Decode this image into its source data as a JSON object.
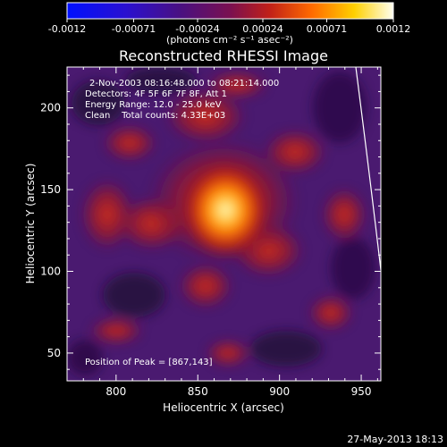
{
  "colorbar": {
    "ticks": [
      "-0.0012",
      "-0.00071",
      "-0.00024",
      "0.00024",
      "0.00071",
      "0.0012"
    ],
    "units_label": "(photons cm⁻² s⁻¹ asec⁻²)",
    "range": [
      -0.0012,
      0.0012
    ]
  },
  "chart_data": {
    "type": "heatmap",
    "title": "Reconstructed RHESSI Image",
    "xlabel": "Heliocentric X (arcsec)",
    "ylabel": "Heliocentric Y (arcsec)",
    "xlim": [
      770,
      962
    ],
    "ylim": [
      33,
      225
    ],
    "xticks": [
      800,
      850,
      900,
      950
    ],
    "yticks": [
      50,
      100,
      150,
      200
    ],
    "peak": {
      "x": 867,
      "y": 143
    },
    "info_lines": [
      "2-Nov-2003 08:16:48.000 to 08:21:14.000",
      "Detectors: 4F 5F 6F 7F 8F, Att 1",
      "Energy Range: 12.0 - 25.0 keV",
      "Clean    Total counts: 4.33E+03"
    ],
    "peak_label": "Position of Peak = [867,143]",
    "limb_arc_present": true
  },
  "footer": {
    "timestamp": "27-May-2013 18:13"
  }
}
